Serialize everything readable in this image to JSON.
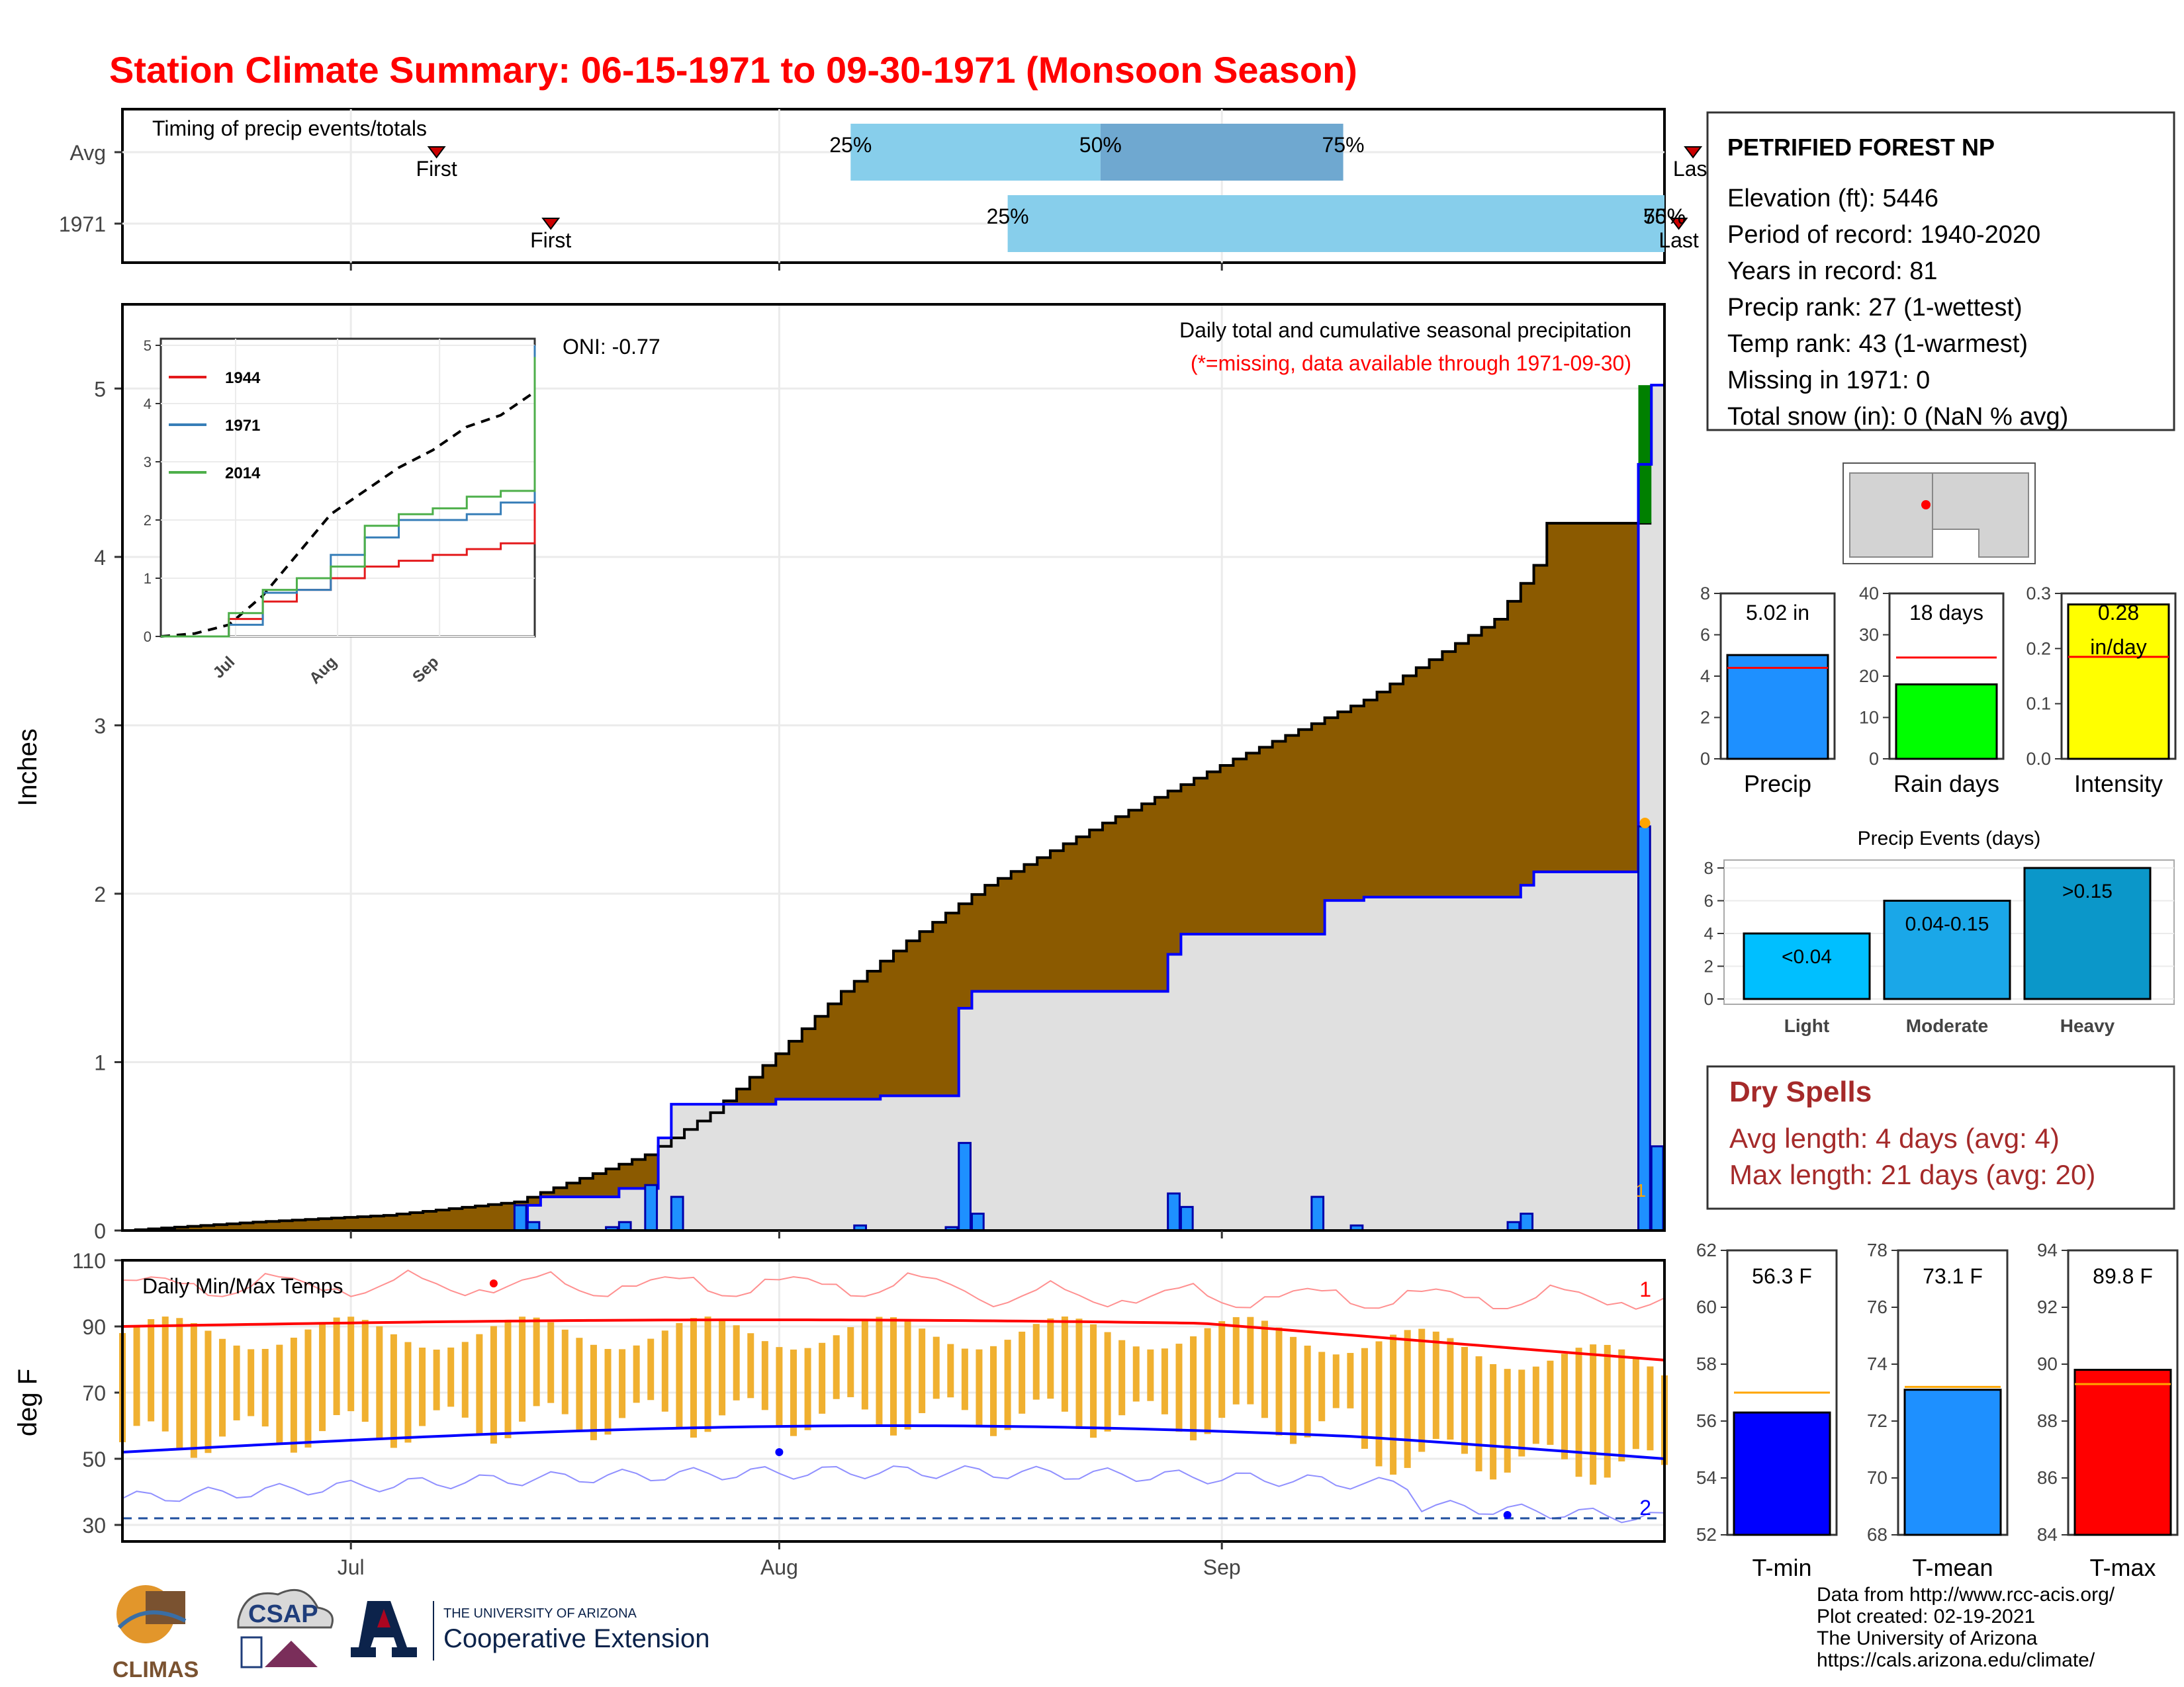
{
  "title": "Station Climate Summary: 06-15-1971 to 09-30-1971 (Monsoon Season)",
  "timing": {
    "title": "Timing of precip events/totals",
    "rows": [
      "Avg",
      "1971"
    ],
    "avg": {
      "first_day": 22,
      "p25_day": 51,
      "p50_day": 68.5,
      "p75_day": 85.5,
      "last_day": 110,
      "labels": {
        "first": "First",
        "p25": "25%",
        "p50": "50%",
        "p75": "75%",
        "last": "Last"
      }
    },
    "y1971": {
      "first_day": 30,
      "p25_day": 62,
      "p50_day": 108,
      "p75_day": 108,
      "last_day": 109,
      "labels": {
        "first": "First",
        "p25": "25%",
        "p50": "50%",
        "p75": "75%",
        "last": "Last"
      }
    }
  },
  "main": {
    "ylabel": "Inches",
    "oni": "ONI: -0.77",
    "caption": "Daily total and cumulative seasonal precipitation",
    "missing_note": "(*=missing, data available through 1971-09-30)",
    "month_labels": [
      "Jul",
      "Aug",
      "Sep"
    ],
    "yticks": [
      0,
      1,
      2,
      3,
      4,
      5
    ],
    "count_label": "1"
  },
  "inset": {
    "yticks": [
      0,
      1,
      2,
      3,
      4,
      5
    ],
    "xticks": [
      "Jul",
      "Aug",
      "Sep"
    ],
    "legend": [
      {
        "name": "1944",
        "color": "#e41a1c"
      },
      {
        "name": "1971",
        "color": "#377eb8"
      },
      {
        "name": "2014",
        "color": "#4daf4a"
      }
    ]
  },
  "temps": {
    "title": "Daily Min/Max Temps",
    "ylabel": "deg F",
    "yticks": [
      30,
      50,
      70,
      90,
      110
    ],
    "xticks": [
      "Jul",
      "Aug",
      "Sep"
    ],
    "count_top": "1",
    "count_bottom": "2"
  },
  "station": {
    "name": "PETRIFIED FOREST NP",
    "lines": [
      "Elevation (ft): 5446",
      "Period of record: 1940-2020",
      "Years in record: 81",
      "Precip rank: 27 (1-wettest)",
      "Temp rank: 43 (1-warmest)",
      "Missing in 1971: 0",
      "Total snow (in): 0 (NaN % avg)"
    ]
  },
  "bars": {
    "precip": {
      "label": "Precip",
      "value": 5.02,
      "avg": 4.4,
      "text": "5.02 in",
      "yticks": [
        "0",
        "2",
        "4",
        "6",
        "8"
      ],
      "max": 8,
      "color": "#1e90ff"
    },
    "raindays": {
      "label": "Rain days",
      "value": 18,
      "avg": 24.5,
      "text": "18 days",
      "yticks": [
        "0",
        "10",
        "20",
        "30",
        "40"
      ],
      "max": 40,
      "color": "#00ff00"
    },
    "intensity": {
      "label": "Intensity",
      "value": 0.28,
      "avg": 0.185,
      "text": "0.28",
      "unit": "in/day",
      "yticks": [
        "0.0",
        "0.1",
        "0.2",
        "0.3"
      ],
      "max": 0.3,
      "color": "#ffff00"
    }
  },
  "events": {
    "title": "Precip Events (days)",
    "yticks": [
      "0",
      "2",
      "4",
      "6",
      "8"
    ],
    "items": [
      {
        "name": "Light",
        "value": 4,
        "label": "<0.04",
        "color": "#00bfff"
      },
      {
        "name": "Moderate",
        "value": 6,
        "label": "0.04-0.15",
        "color": "#1aa7e8"
      },
      {
        "name": "Heavy",
        "value": 8,
        "label": ">0.15",
        "color": "#0b97c9"
      }
    ]
  },
  "dry": {
    "title": "Dry Spells",
    "lines": [
      "Avg length: 4 days (avg: 4)",
      "Max length: 21 days (avg: 20)"
    ]
  },
  "tbars": {
    "tmin": {
      "label": "T-min",
      "value": 56.3,
      "avg": 57.0,
      "text": "56.3 F",
      "min": 52,
      "max": 62,
      "yticks": [
        "52",
        "54",
        "56",
        "58",
        "60",
        "62"
      ],
      "color": "#0000ff"
    },
    "tmean": {
      "label": "T-mean",
      "value": 73.1,
      "avg": 73.2,
      "text": "73.1 F",
      "min": 68,
      "max": 78,
      "yticks": [
        "68",
        "70",
        "72",
        "74",
        "76",
        "78"
      ],
      "color": "#1e90ff"
    },
    "tmax": {
      "label": "T-max",
      "value": 89.8,
      "avg": 89.3,
      "text": "89.8 F",
      "min": 84,
      "max": 94,
      "yticks": [
        "84",
        "86",
        "88",
        "90",
        "92",
        "94"
      ],
      "color": "#ff0000"
    }
  },
  "footer": [
    "Data from http://www.rcc-acis.org/",
    "Plot created: 02-19-2021",
    "The University of Arizona",
    "https://cals.arizona.edu/climate/"
  ],
  "logos": {
    "climas": "CLIMAS",
    "csap": "CSAP",
    "ua_line1": "THE UNIVERSITY OF ARIZONA",
    "ua_line2": "Cooperative Extension"
  },
  "chart_data": [
    {
      "type": "area",
      "title": "Daily total and cumulative seasonal precipitation",
      "ylabel": "Inches",
      "ylim": [
        0,
        5.5
      ],
      "x_range": [
        "1971-06-15",
        "1971-09-30"
      ],
      "avg_cumulative_points": [
        [
          0,
          0
        ],
        [
          10,
          0.05
        ],
        [
          20,
          0.09
        ],
        [
          30,
          0.17
        ],
        [
          40,
          0.45
        ],
        [
          45,
          0.7
        ],
        [
          50,
          1.05
        ],
        [
          55,
          1.42
        ],
        [
          60,
          1.72
        ],
        [
          66,
          2.05
        ],
        [
          75,
          2.42
        ],
        [
          85,
          2.8
        ],
        [
          95,
          3.15
        ],
        [
          105,
          3.63
        ],
        [
          108,
          3.95
        ],
        [
          109,
          4.2
        ]
      ],
      "cumulative_1971": [
        [
          0,
          0
        ],
        [
          30,
          0
        ],
        [
          31,
          0.15
        ],
        [
          32,
          0.2
        ],
        [
          33,
          0.2
        ],
        [
          37,
          0.2
        ],
        [
          38,
          0.25
        ],
        [
          40,
          0.25
        ],
        [
          41,
          0.55
        ],
        [
          42,
          0.75
        ],
        [
          49,
          0.75
        ],
        [
          50,
          0.78
        ],
        [
          57,
          0.78
        ],
        [
          58,
          0.8
        ],
        [
          63,
          0.8
        ],
        [
          64,
          1.32
        ],
        [
          65,
          1.42
        ],
        [
          79,
          1.42
        ],
        [
          80,
          1.64
        ],
        [
          81,
          1.76
        ],
        [
          91,
          1.76
        ],
        [
          92,
          1.96
        ],
        [
          94,
          1.96
        ],
        [
          95,
          1.98
        ],
        [
          106,
          1.98
        ],
        [
          107,
          2.05
        ],
        [
          108,
          2.13
        ],
        [
          115,
          2.13
        ],
        [
          116,
          4.55
        ],
        [
          117,
          5.02
        ]
      ],
      "daily_1971": [
        [
          30,
          0.15
        ],
        [
          31,
          0.05
        ],
        [
          37,
          0.02
        ],
        [
          38,
          0.05
        ],
        [
          40,
          0.27
        ],
        [
          42,
          0.2
        ],
        [
          56,
          0.03
        ],
        [
          63,
          0.02
        ],
        [
          64,
          0.52
        ],
        [
          65,
          0.1
        ],
        [
          80,
          0.22
        ],
        [
          81,
          0.14
        ],
        [
          91,
          0.2
        ],
        [
          94,
          0.03
        ],
        [
          106,
          0.05
        ],
        [
          107,
          0.1
        ],
        [
          116,
          2.4
        ],
        [
          117,
          0.5
        ]
      ]
    },
    {
      "type": "line",
      "title": "Cumulative precipitation (inset)",
      "ylim": [
        0,
        5
      ],
      "series": [
        {
          "name": "1944",
          "values": [
            0,
            0,
            0.3,
            0.6,
            0.8,
            1.0,
            1.2,
            1.3,
            1.4,
            1.5,
            1.6,
            4.0
          ]
        },
        {
          "name": "1971",
          "values": [
            0,
            0,
            0.2,
            0.75,
            0.8,
            1.4,
            1.7,
            2.0,
            2.0,
            2.1,
            2.3,
            5.0
          ]
        },
        {
          "name": "2014",
          "values": [
            0,
            0,
            0.4,
            0.8,
            1.0,
            1.2,
            1.9,
            2.1,
            2.2,
            2.4,
            2.5,
            4.8
          ]
        }
      ]
    },
    {
      "type": "bar",
      "title": "Daily Min/Max Temps",
      "ylabel": "deg F",
      "ylim": [
        25,
        110
      ]
    },
    {
      "type": "bar",
      "categories": [
        "Light",
        "Moderate",
        "Heavy"
      ],
      "values": [
        4,
        6,
        8
      ],
      "title": "Precip Events (days)"
    },
    {
      "type": "bar",
      "categories": [
        "Precip",
        "Rain days",
        "Intensity"
      ],
      "values": [
        5.02,
        18,
        0.28
      ]
    },
    {
      "type": "bar",
      "categories": [
        "T-min",
        "T-mean",
        "T-max"
      ],
      "values": [
        56.3,
        73.1,
        89.8
      ]
    }
  ]
}
